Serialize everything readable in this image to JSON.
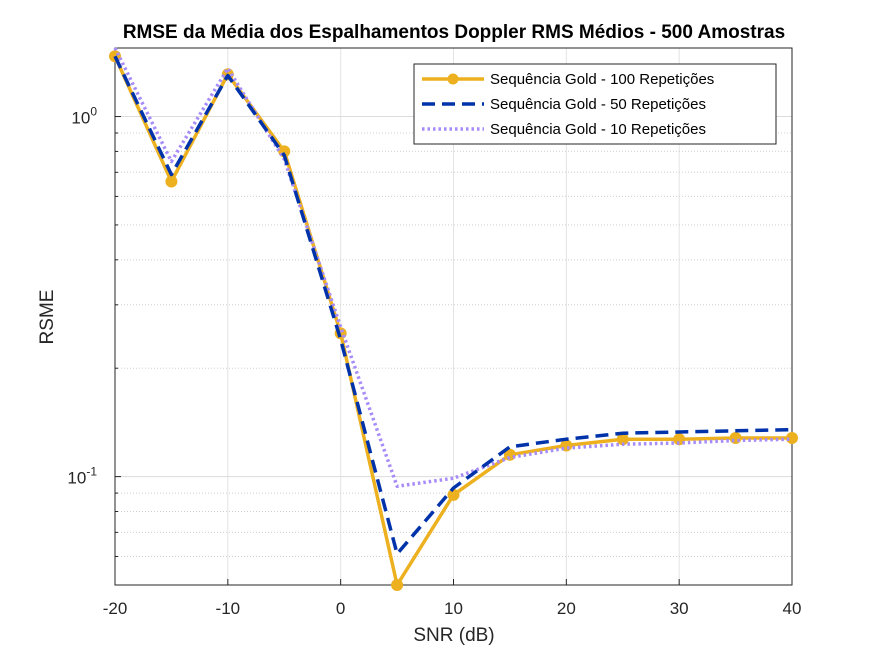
{
  "chart_data": {
    "type": "line",
    "title": "RMSE da Média dos Espalhamentos Doppler RMS Médios - 500 Amostras",
    "xlabel": "SNR (dB)",
    "ylabel": "RSME",
    "xscale": "linear",
    "yscale": "log",
    "xlim": [
      -20,
      40
    ],
    "ylim": [
      0.05,
      1.55
    ],
    "xticks": [
      -20,
      -10,
      0,
      10,
      20,
      30,
      40
    ],
    "xtick_labels": [
      "-20",
      "-10",
      "0",
      "10",
      "20",
      "30",
      "40"
    ],
    "ytick_major": [
      {
        "base": "10",
        "exp": "0",
        "value": 1
      },
      {
        "base": "10",
        "exp": "-1",
        "value": 0.1
      }
    ],
    "grid": true,
    "legend_position": "top-right",
    "x": [
      -20,
      -15,
      -10,
      -5,
      0,
      5,
      10,
      15,
      20,
      25,
      30,
      35,
      40
    ],
    "series": [
      {
        "name": "Sequência Gold - 100 Repetições",
        "color": "#EDB120",
        "style": "solid-markers",
        "values": [
          1.47,
          0.66,
          1.31,
          0.8,
          0.25,
          0.05,
          0.089,
          0.115,
          0.122,
          0.127,
          0.127,
          0.128,
          0.128
        ]
      },
      {
        "name": "Sequência Gold - 50 Repetições",
        "color": "#0033AA",
        "style": "dashed",
        "values": [
          1.47,
          0.69,
          1.3,
          0.78,
          0.24,
          0.061,
          0.093,
          0.121,
          0.127,
          0.132,
          0.133,
          0.134,
          0.135
        ]
      },
      {
        "name": "Sequência Gold - 10 Repetições",
        "color": "#A78BFA",
        "style": "dotted",
        "values": [
          1.55,
          0.75,
          1.36,
          0.76,
          0.26,
          0.094,
          0.099,
          0.113,
          0.12,
          0.123,
          0.124,
          0.126,
          0.127
        ]
      }
    ]
  }
}
